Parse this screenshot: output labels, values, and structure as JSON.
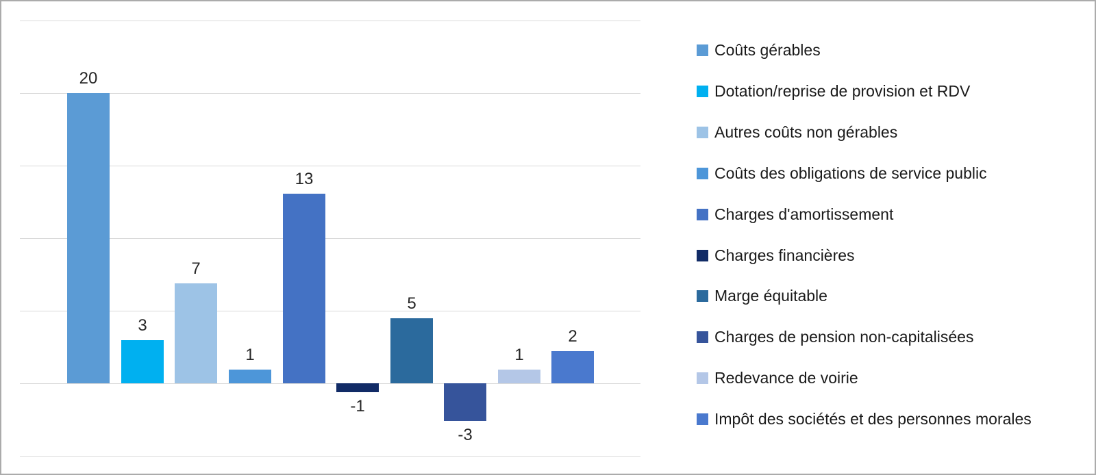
{
  "chart_data": {
    "type": "bar",
    "title": "",
    "xlabel": "",
    "ylabel": "",
    "categories": [
      "Coûts gérables",
      "Dotation/reprise de provision et RDV",
      "Autres coûts non gérables",
      "Coûts des obligations de service public",
      "Charges d'amortissement",
      "Charges financières",
      "Marge équitable",
      "Charges de pension non-capitalisées",
      "Redevance de voirie",
      "Impôt des sociétés et des personnes morales"
    ],
    "values": [
      20,
      3,
      7,
      1,
      13,
      -1,
      5,
      -3,
      1,
      2
    ],
    "data_labels": [
      "20",
      "3",
      "7",
      "1",
      "13",
      "-1",
      "5",
      "-3",
      "1",
      "2"
    ],
    "estimated_values": [
      20,
      2.95,
      6.9,
      0.95,
      13.05,
      -0.6,
      4.5,
      -2.6,
      0.95,
      2.2
    ],
    "colors": [
      "#5B9BD5",
      "#00B0F0",
      "#9DC3E6",
      "#4D96D9",
      "#4472C4",
      "#112B66",
      "#2B6A9D",
      "#36549B",
      "#B4C7E7",
      "#4A79CE"
    ],
    "ylim": [
      -5,
      25
    ],
    "gridline_values": [
      25,
      20,
      15,
      10,
      5,
      0,
      -5
    ],
    "grid": true,
    "axis_tick_labels_visible": false,
    "legend_position": "right"
  },
  "style": {
    "gridline_color": "#D9D9D9",
    "label_color": "#262626",
    "legend_text_color": "#1A1A1A",
    "background": "#ffffff",
    "border_color": "#ABABAB"
  }
}
